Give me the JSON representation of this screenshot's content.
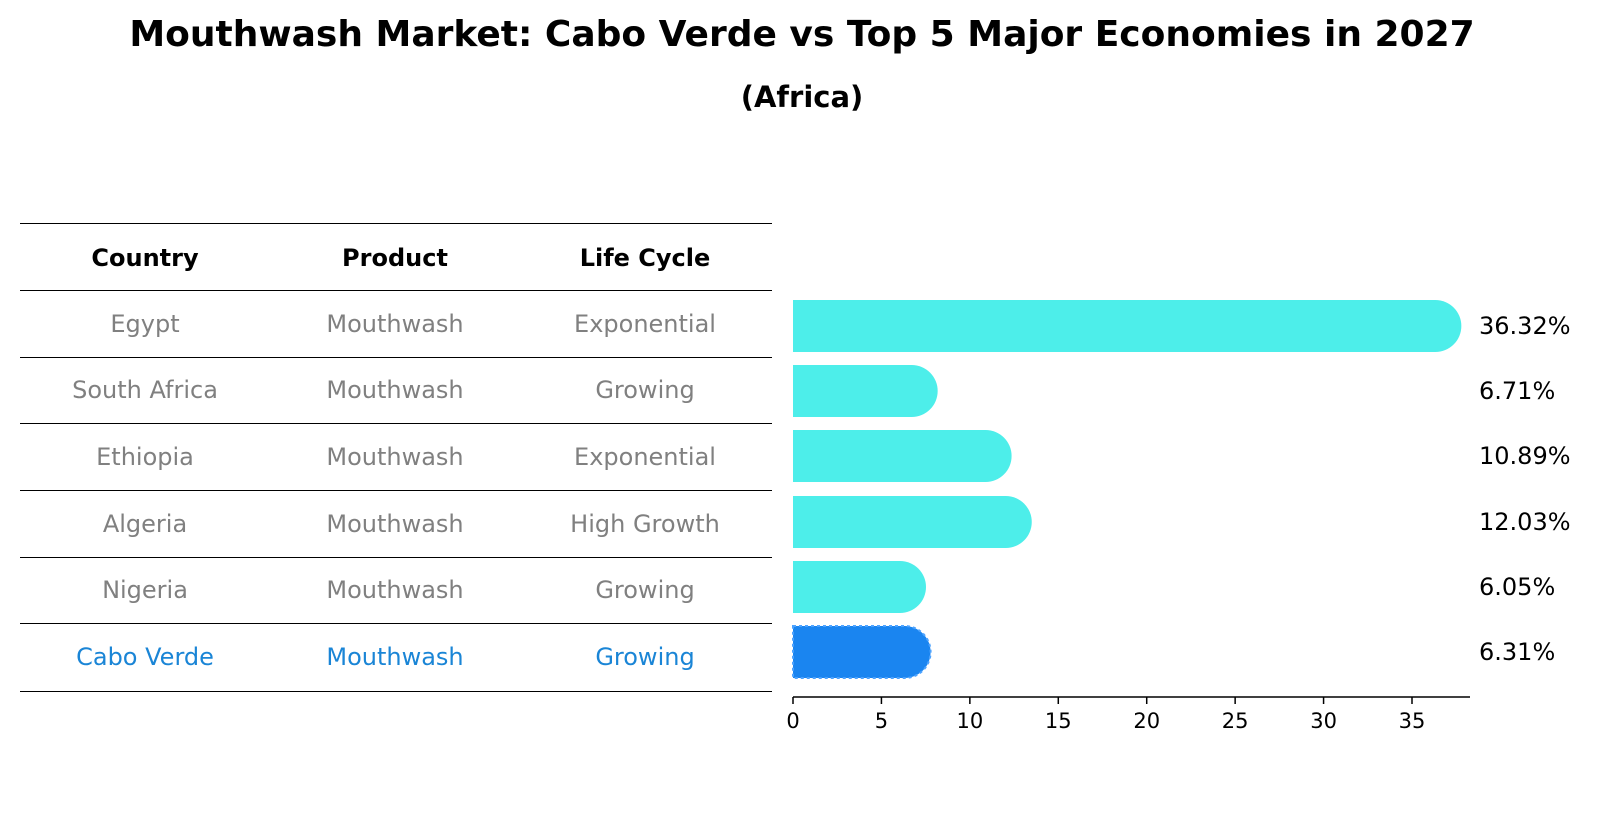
{
  "title": "Mouthwash Market: Cabo Verde vs Top 5 Major Economies in 2027",
  "subtitle": "(Africa)",
  "table": {
    "headers": [
      "Country",
      "Product",
      "Life Cycle"
    ],
    "rows": [
      [
        "Egypt",
        "Mouthwash",
        "Exponential"
      ],
      [
        "South Africa",
        "Mouthwash",
        "Growing"
      ],
      [
        "Ethiopia",
        "Mouthwash",
        "Exponential"
      ],
      [
        "Algeria",
        "Mouthwash",
        "High Growth"
      ],
      [
        "Nigeria",
        "Mouthwash",
        "Growing"
      ],
      [
        "Cabo Verde",
        "Mouthwash",
        "Growing"
      ]
    ]
  },
  "colors": {
    "bar": "#4deeea",
    "highlight": "#1a85f0",
    "highlight_text": "#1a85d6",
    "muted_text": "#808080"
  },
  "chart_data": {
    "type": "bar",
    "orientation": "horizontal",
    "title": "Mouthwash Market: Cabo Verde vs Top 5 Major Economies in 2027",
    "subtitle": "(Africa)",
    "categories": [
      "Egypt",
      "South Africa",
      "Ethiopia",
      "Algeria",
      "Nigeria",
      "Cabo Verde"
    ],
    "values": [
      36.32,
      6.71,
      10.89,
      12.03,
      6.05,
      6.31
    ],
    "value_labels": [
      "36.32%",
      "6.71%",
      "10.89%",
      "12.03%",
      "6.05%",
      "6.31%"
    ],
    "highlight_category": "Cabo Verde",
    "xlim": [
      0,
      38
    ],
    "xticks": [
      0,
      5,
      10,
      15,
      20,
      25,
      30,
      35
    ],
    "xlabel": "",
    "ylabel": ""
  }
}
